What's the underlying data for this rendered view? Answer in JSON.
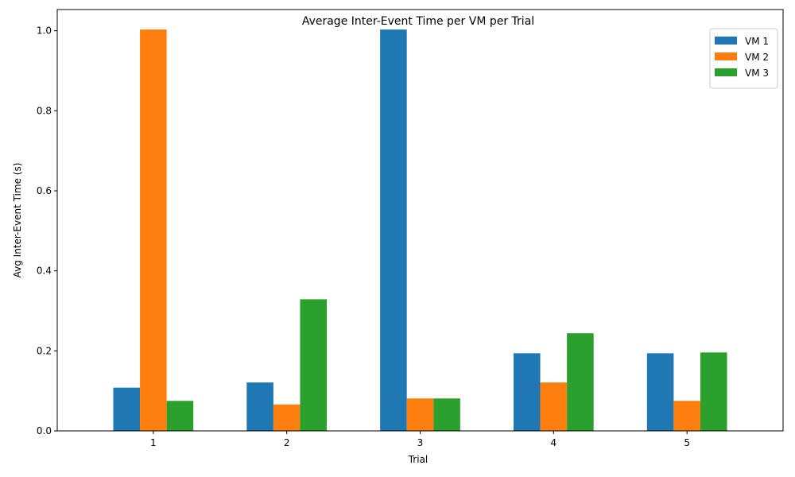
{
  "chart_data": {
    "type": "bar",
    "title": "Average Inter-Event Time per VM per Trial",
    "xlabel": "Trial",
    "ylabel": "Avg Inter-Event Time (s)",
    "categories": [
      "1",
      "2",
      "3",
      "4",
      "5"
    ],
    "ylim": [
      0,
      1.053
    ],
    "yticks": [
      0.0,
      0.2,
      0.4,
      0.6,
      0.8,
      1.0
    ],
    "ytick_labels": [
      "0.0",
      "0.2",
      "0.4",
      "0.6",
      "0.8",
      "1.0"
    ],
    "grid": false,
    "legend_position": "top-right",
    "series": [
      {
        "name": "VM 1",
        "color": "#1f77b4",
        "values": [
          0.108,
          0.121,
          1.003,
          0.194,
          0.194
        ]
      },
      {
        "name": "VM 2",
        "color": "#ff7f0e",
        "values": [
          1.003,
          0.066,
          0.081,
          0.121,
          0.075
        ]
      },
      {
        "name": "VM 3",
        "color": "#2ca02c",
        "values": [
          0.075,
          0.329,
          0.081,
          0.244,
          0.196
        ]
      }
    ]
  }
}
